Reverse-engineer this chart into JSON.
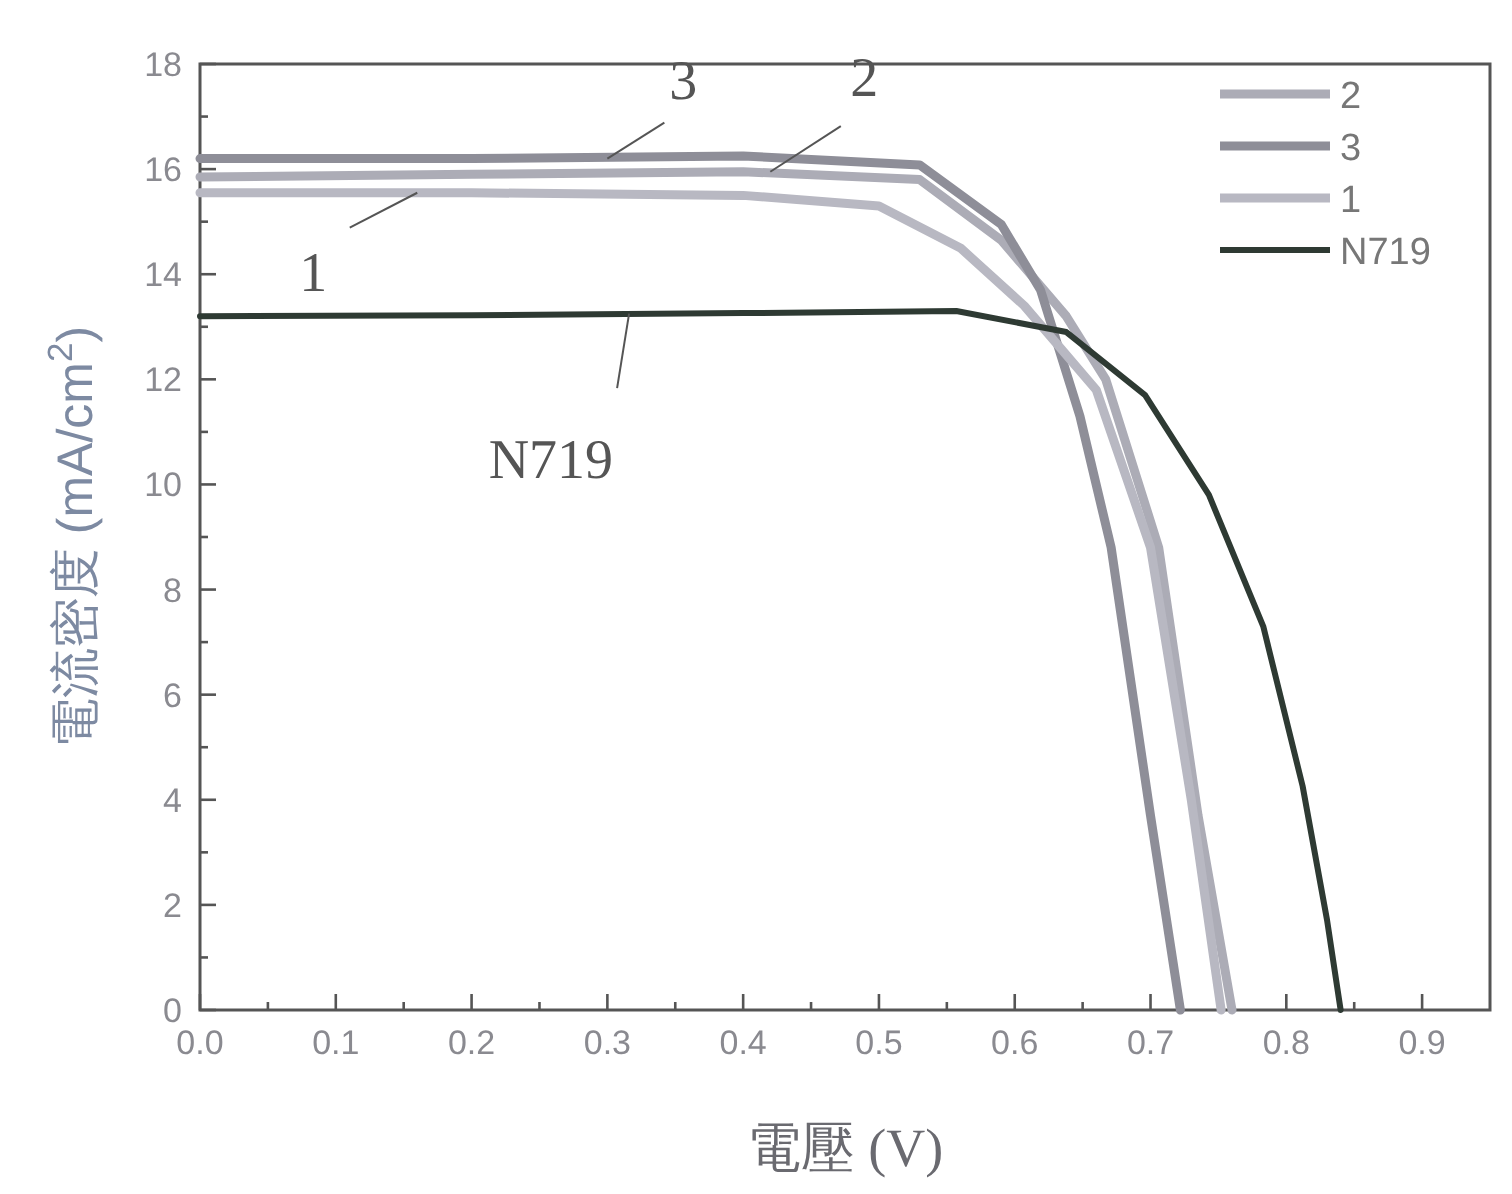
{
  "chart_data": {
    "type": "line",
    "xlabel": "電壓 (V)",
    "ylabel": "電流密度 (mA/cm$^{2}$)",
    "xlim": [
      0,
      0.95
    ],
    "ylim": [
      0,
      18
    ],
    "xticks": [
      {
        "value": 0,
        "label": "0.0"
      },
      {
        "value": 0.05,
        "label": null
      },
      0.1,
      {
        "value": 0.15,
        "label": null
      },
      0.2,
      {
        "value": 0.25,
        "label": null
      },
      0.3,
      {
        "value": 0.35,
        "label": null
      },
      0.4,
      {
        "value": 0.45,
        "label": null
      },
      0.5,
      {
        "value": 0.55,
        "label": null
      },
      0.6,
      {
        "value": 0.65,
        "label": null
      },
      0.7,
      {
        "value": 0.75,
        "label": null
      },
      0.8,
      {
        "value": 0.85,
        "label": null
      },
      0.9
    ],
    "yticks": [
      0,
      {
        "value": 1,
        "label": null
      },
      2,
      {
        "value": 3,
        "label": null
      },
      4,
      {
        "value": 5,
        "label": null
      },
      6,
      {
        "value": 7,
        "label": null
      },
      8,
      {
        "value": 9,
        "label": null
      },
      10,
      {
        "value": 11,
        "label": null
      },
      12,
      {
        "value": 13,
        "label": null
      },
      14,
      {
        "value": 15,
        "label": null
      },
      16,
      {
        "value": 17,
        "label": null
      },
      18
    ],
    "grid": false,
    "legend": "top right",
    "marker": "none",
    "line_style": "solid",
    "series": [
      {
        "name": "2",
        "color": "#acacb6",
        "x": [
          0,
          0.2,
          0.4,
          0.53,
          0.59,
          0.638,
          0.667,
          0.706,
          0.735,
          0.76
        ],
        "values": [
          15.85,
          15.9,
          15.95,
          15.8,
          14.65,
          13.2,
          12.0,
          8.8,
          3.7,
          0
        ]
      },
      {
        "name": "3",
        "color": "#8e8e98",
        "x": [
          0,
          0.2,
          0.4,
          0.53,
          0.59,
          0.619,
          0.648,
          0.671,
          0.7,
          0.722
        ],
        "values": [
          16.2,
          16.2,
          16.25,
          16.08,
          14.95,
          13.7,
          11.3,
          8.8,
          3.7,
          0
        ]
      },
      {
        "name": "1",
        "color": "#b8b8c2",
        "x": [
          0,
          0.2,
          0.4,
          0.5,
          0.56,
          0.607,
          0.66,
          0.7,
          0.73,
          0.752
        ],
        "values": [
          15.55,
          15.55,
          15.5,
          15.3,
          14.5,
          13.4,
          11.8,
          8.8,
          4.0,
          0
        ]
      },
      {
        "name": "N719",
        "color": "#2e3a33",
        "x": [
          0,
          0.2,
          0.4,
          0.557,
          0.638,
          0.696,
          0.743,
          0.783,
          0.812,
          0.83,
          0.84
        ],
        "values": [
          13.2,
          13.22,
          13.26,
          13.3,
          12.9,
          11.7,
          9.8,
          7.3,
          4.26,
          1.71,
          0
        ]
      }
    ],
    "annotations": [
      {
        "text": "3",
        "x": 0.3,
        "y": 16.2
      },
      {
        "text": "2",
        "x": 0.42,
        "y": 15.95
      },
      {
        "text": "1",
        "x": 0.16,
        "y": 15.55
      },
      {
        "text": "N719",
        "x": 0.316,
        "y": 13.25
      }
    ]
  }
}
